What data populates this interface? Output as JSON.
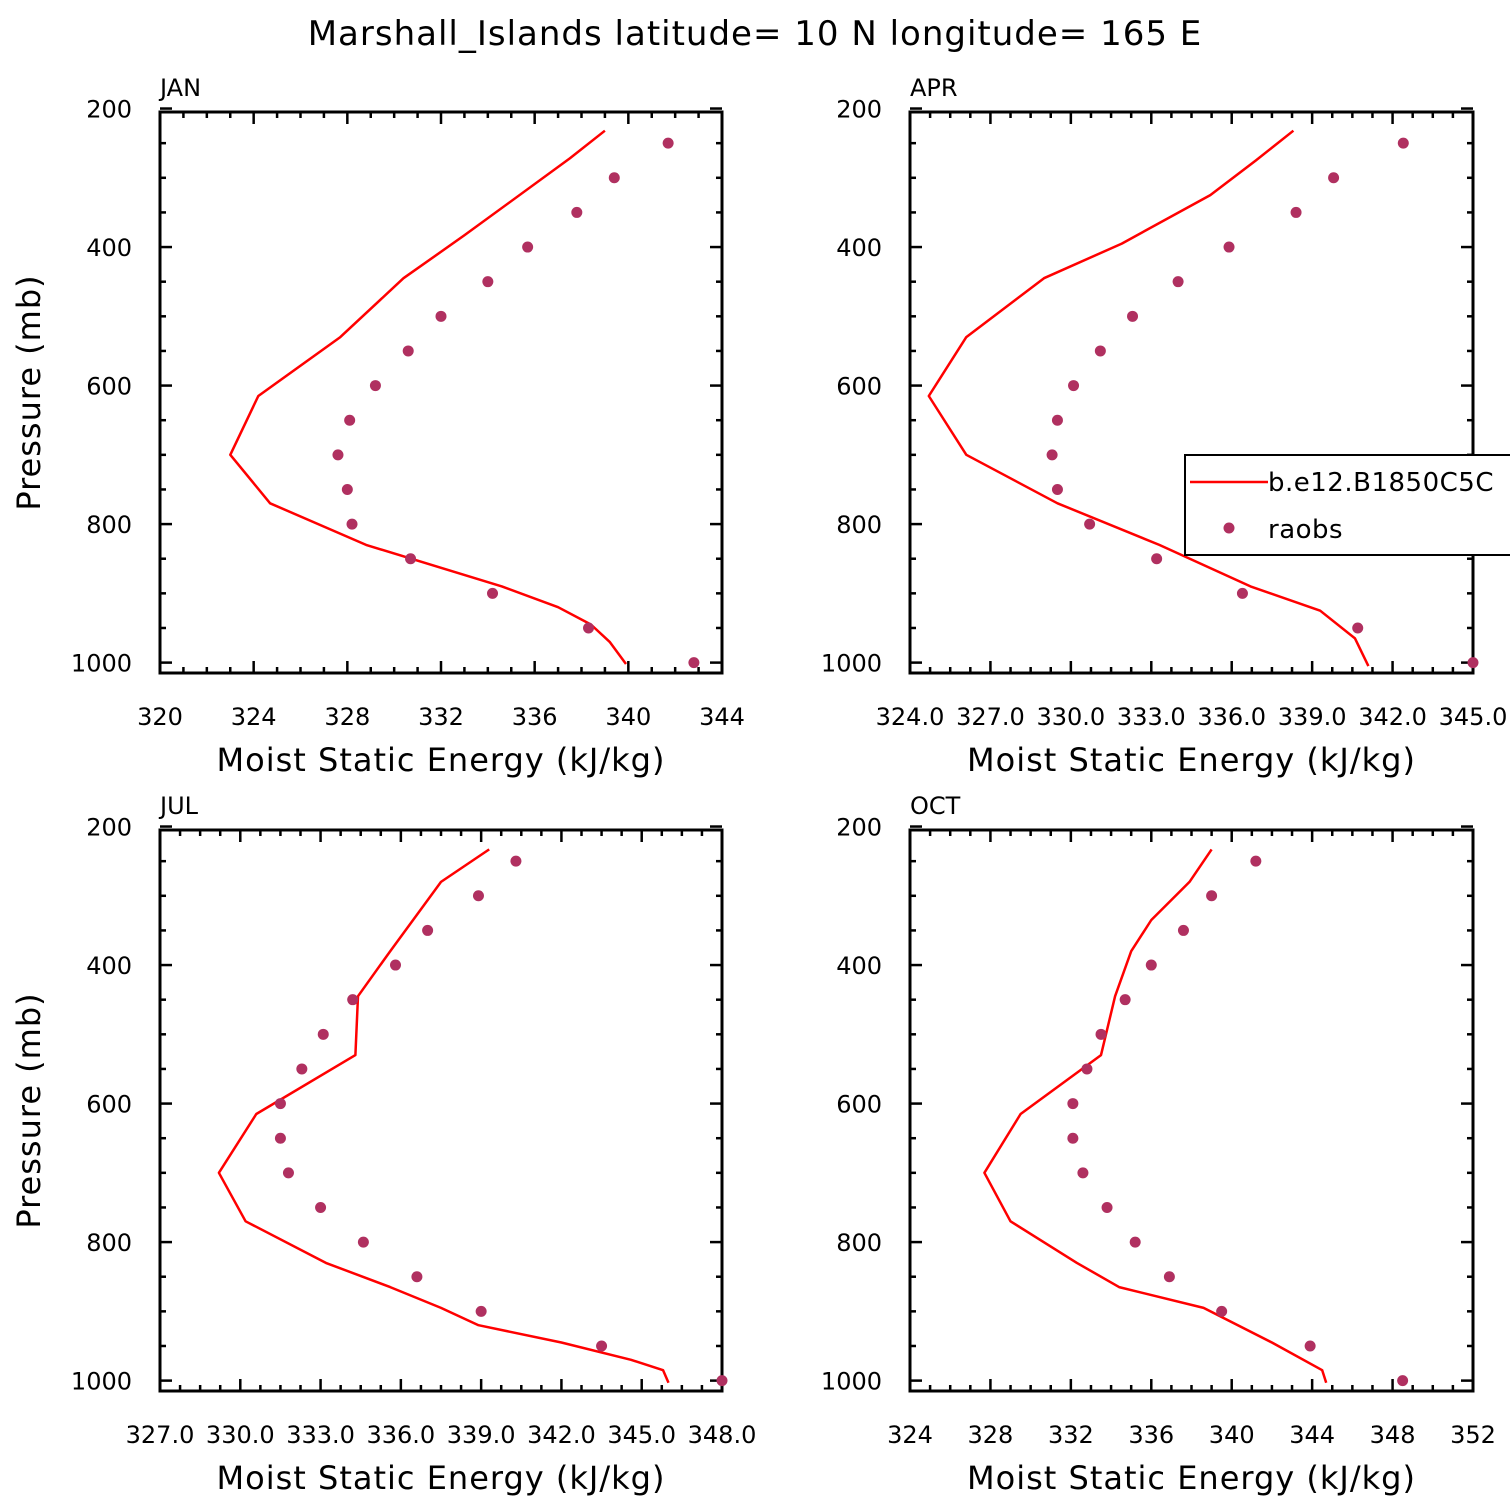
{
  "title": "Marshall_Islands  latitude= 10 N longitude= 165 E",
  "colors": {
    "model": "#ff0000",
    "obs": "#b03060",
    "axis": "#000000"
  },
  "legend": {
    "model": "b.e12.B1850C5C",
    "obs": "raobs"
  },
  "chart_data": [
    {
      "type": "line",
      "panel": "JAN",
      "xlabel": "Moist Static Energy (kJ/kg)",
      "ylabel": "Pressure (mb)",
      "xlim": [
        320,
        344
      ],
      "ylim": [
        1000,
        200
      ],
      "xticks": [
        320,
        324,
        328,
        332,
        336,
        340,
        344
      ],
      "xtick_labels": [
        "320",
        "324",
        "328",
        "332",
        "336",
        "340",
        "344"
      ],
      "yticks": [
        200,
        400,
        600,
        800,
        1000
      ],
      "ytick_labels": [
        "200",
        "400",
        "600",
        "800",
        "1000"
      ],
      "series": [
        {
          "name": "b.e12.B1850C5C",
          "style": "line",
          "x": [
            339.0,
            337.5,
            333.0,
            330.4,
            327.7,
            324.2,
            323.0,
            324.7,
            328.8,
            334.6,
            337.0,
            338.4,
            339.2,
            339.9
          ],
          "y": [
            232,
            272,
            383,
            445,
            530,
            615,
            700,
            770,
            830,
            890,
            920,
            945,
            970,
            1002
          ]
        },
        {
          "name": "raobs",
          "style": "marker",
          "x": [
            341.7,
            339.4,
            337.8,
            335.7,
            334.0,
            332.0,
            330.6,
            329.2,
            328.1,
            327.6,
            328.0,
            328.2,
            330.7,
            334.2,
            338.3,
            342.8
          ],
          "y": [
            250,
            300,
            350,
            400,
            450,
            500,
            550,
            600,
            650,
            700,
            750,
            800,
            850,
            900,
            950,
            1000
          ]
        }
      ]
    },
    {
      "type": "line",
      "panel": "APR",
      "xlabel": "Moist Static Energy (kJ/kg)",
      "xlim": [
        324.0,
        345.0
      ],
      "ylim": [
        1000,
        200
      ],
      "xticks": [
        324.0,
        327.0,
        330.0,
        333.0,
        336.0,
        339.0,
        342.0,
        345.0
      ],
      "xtick_labels": [
        "324.0",
        "327.0",
        "330.0",
        "333.0",
        "336.0",
        "339.0",
        "342.0",
        "345.0"
      ],
      "yticks": [
        200,
        400,
        600,
        800,
        1000
      ],
      "ytick_labels": [
        "200",
        "400",
        "600",
        "800",
        "1000"
      ],
      "series": [
        {
          "name": "b.e12.B1850C5C",
          "style": "line",
          "x": [
            338.3,
            336.9,
            335.2,
            331.9,
            329.0,
            326.1,
            324.7,
            326.1,
            329.5,
            333.3,
            336.7,
            339.3,
            340.6,
            341.1
          ],
          "y": [
            232,
            275,
            325,
            395,
            445,
            530,
            615,
            700,
            770,
            830,
            890,
            925,
            965,
            1005
          ]
        },
        {
          "name": "raobs",
          "style": "marker",
          "x": [
            342.4,
            339.8,
            338.4,
            335.9,
            334.0,
            332.3,
            331.1,
            330.1,
            329.5,
            329.3,
            329.5,
            330.7,
            333.2,
            336.4,
            340.7,
            345.0
          ],
          "y": [
            250,
            300,
            350,
            400,
            450,
            500,
            550,
            600,
            650,
            700,
            750,
            800,
            850,
            900,
            950,
            1000
          ]
        }
      ]
    },
    {
      "type": "line",
      "panel": "JUL",
      "xlabel": "Moist Static Energy (kJ/kg)",
      "ylabel": "Pressure (mb)",
      "xlim": [
        327.0,
        348.0
      ],
      "ylim": [
        1000,
        200
      ],
      "xticks": [
        327.0,
        330.0,
        333.0,
        336.0,
        339.0,
        342.0,
        345.0,
        348.0
      ],
      "xtick_labels": [
        "327.0",
        "330.0",
        "333.0",
        "336.0",
        "339.0",
        "342.0",
        "345.0",
        "348.0"
      ],
      "yticks": [
        200,
        400,
        600,
        800,
        1000
      ],
      "ytick_labels": [
        "200",
        "400",
        "600",
        "800",
        "1000"
      ],
      "series": [
        {
          "name": "b.e12.B1850C5C",
          "style": "line",
          "x": [
            339.3,
            337.5,
            335.6,
            334.4,
            334.3,
            330.6,
            329.2,
            330.2,
            333.2,
            335.6,
            337.5,
            338.9,
            342.0,
            344.6,
            345.8,
            346.0
          ],
          "y": [
            233,
            280,
            380,
            445,
            530,
            615,
            700,
            770,
            830,
            865,
            895,
            920,
            945,
            970,
            985,
            1003
          ]
        },
        {
          "name": "raobs",
          "style": "marker",
          "x": [
            340.3,
            338.9,
            337.0,
            335.8,
            334.2,
            333.1,
            332.3,
            331.5,
            331.5,
            331.8,
            333.0,
            334.6,
            336.6,
            339.0,
            343.5,
            348.0
          ],
          "y": [
            250,
            300,
            350,
            400,
            450,
            500,
            550,
            600,
            650,
            700,
            750,
            800,
            850,
            900,
            950,
            1000
          ]
        }
      ]
    },
    {
      "type": "line",
      "panel": "OCT",
      "xlabel": "Moist Static Energy (kJ/kg)",
      "xlim": [
        324,
        352
      ],
      "ylim": [
        1000,
        200
      ],
      "xticks": [
        324,
        328,
        332,
        336,
        340,
        344,
        348,
        352
      ],
      "xtick_labels": [
        "324",
        "328",
        "332",
        "336",
        "340",
        "344",
        "348",
        "352"
      ],
      "yticks": [
        200,
        400,
        600,
        800,
        1000
      ],
      "ytick_labels": [
        "200",
        "400",
        "600",
        "800",
        "1000"
      ],
      "series": [
        {
          "name": "b.e12.B1850C5C",
          "style": "line",
          "x": [
            339.0,
            337.9,
            336.0,
            335.0,
            334.2,
            333.5,
            329.5,
            327.7,
            329.0,
            332.3,
            334.4,
            338.6,
            342.0,
            344.5,
            344.7
          ],
          "y": [
            233,
            280,
            335,
            380,
            445,
            530,
            615,
            700,
            770,
            830,
            865,
            895,
            945,
            985,
            1003
          ]
        },
        {
          "name": "raobs",
          "style": "marker",
          "x": [
            341.2,
            339.0,
            337.6,
            336.0,
            334.7,
            333.5,
            332.8,
            332.1,
            332.1,
            332.6,
            333.8,
            335.2,
            336.9,
            339.5,
            343.9,
            348.5
          ],
          "y": [
            250,
            300,
            350,
            400,
            450,
            500,
            550,
            600,
            650,
            700,
            750,
            800,
            850,
            900,
            950,
            1000
          ]
        }
      ]
    }
  ]
}
